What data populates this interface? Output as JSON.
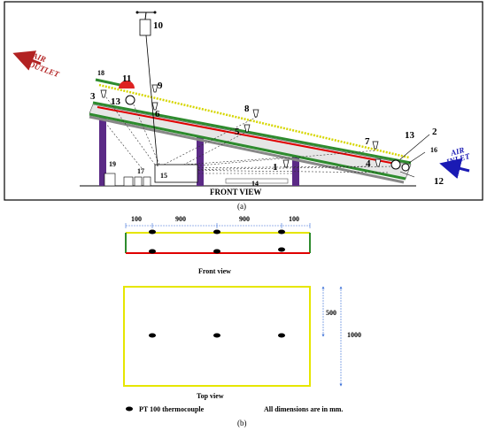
{
  "front_view_diagram": {
    "title": "FRONT VIEW",
    "caption_a": "(a)",
    "air_outlet": [
      "AIR",
      "OUTLET"
    ],
    "air_inlet": [
      "AIR",
      "INLET"
    ],
    "numbers": [
      "1",
      "2",
      "3",
      "4",
      "5",
      "6",
      "7",
      "8",
      "9",
      "10",
      "11",
      "12",
      "13",
      "13",
      "14",
      "15",
      "16",
      "17",
      "18",
      "19"
    ]
  },
  "dimension_drawing": {
    "dims_top": [
      "100",
      "900",
      "900",
      "100"
    ],
    "front_view_label": "Front view",
    "top_view_label": "Top view",
    "dim_500": "500",
    "dim_1000": "1000",
    "legend_label": "PT 100 thermocouple",
    "note": "All dimensions are in mm.",
    "caption_b": "(b)"
  },
  "colors": {
    "panel_green": "#2e8b2e",
    "panel_red": "#e00000",
    "panel_yellow": "#e6e600",
    "outlet_arrow": "#b22222",
    "inlet_arrow": "#1a1ab4",
    "leg_purple": "#5b2a86",
    "blower_red": "#d22"
  },
  "icons": [
    "thermocouple-probe-icon",
    "blower-fan-icon",
    "pt100-sensor-icon"
  ]
}
